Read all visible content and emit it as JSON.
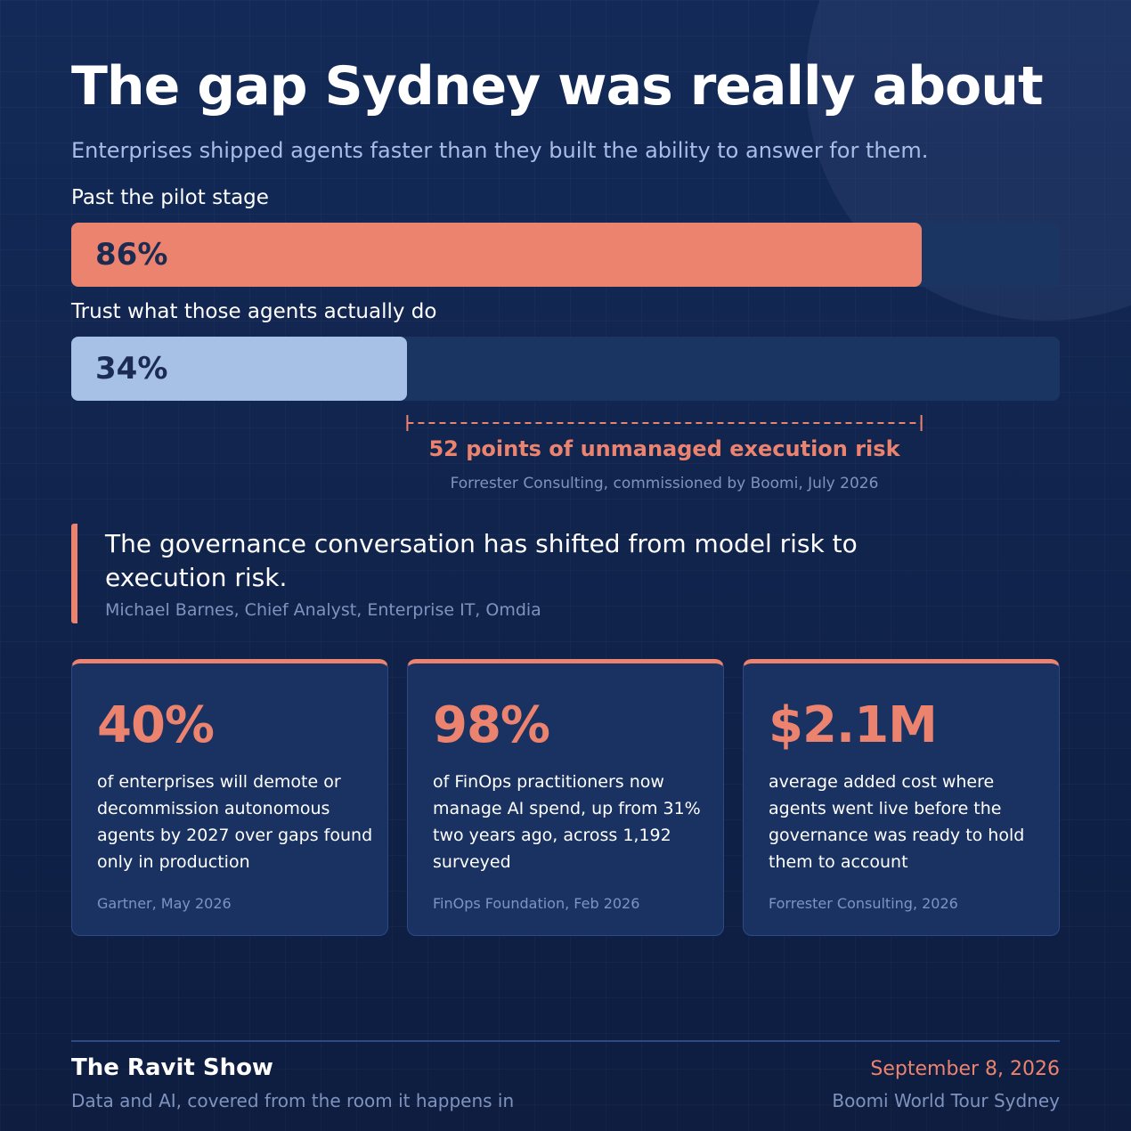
{
  "header": {
    "title": "The gap Sydney was really about",
    "subtitle": "Enterprises shipped agents faster than they built the ability to answer for them."
  },
  "bars": [
    {
      "label": "Past the pilot stage",
      "value": 86,
      "value_label": "86%",
      "color": "#ec836f",
      "text_color": "#1b2b52"
    },
    {
      "label": "Trust what those agents actually do",
      "value": 34,
      "value_label": "34%",
      "color": "#a6c0e6",
      "text_color": "#1b2b52"
    }
  ],
  "gap": {
    "label": "52 points of unmanaged execution risk",
    "source": "Forrester Consulting, commissioned by Boomi, July 2026"
  },
  "quote": {
    "text": "The governance conversation has shifted from model risk to execution risk.",
    "attribution": "Michael Barnes, Chief Analyst, Enterprise IT, Omdia"
  },
  "stats": [
    {
      "value": "40%",
      "text": "of enterprises will demote or decommission autonomous agents by 2027 over gaps found only in production",
      "source": "Gartner, May 2026"
    },
    {
      "value": "98%",
      "text": "of FinOps practitioners now manage AI spend, up from 31% two years ago, across 1,192 surveyed",
      "source": "FinOps Foundation, Feb 2026"
    },
    {
      "value": "$2.1M",
      "text": "average added cost where agents went live before the governance was ready to hold them to account",
      "source": "Forrester Consulting, 2026"
    }
  ],
  "footer": {
    "brand": "The Ravit Show",
    "tagline": "Data and AI, covered from the room it happens in",
    "date": "September 8, 2026",
    "event": "Boomi World Tour Sydney"
  }
}
